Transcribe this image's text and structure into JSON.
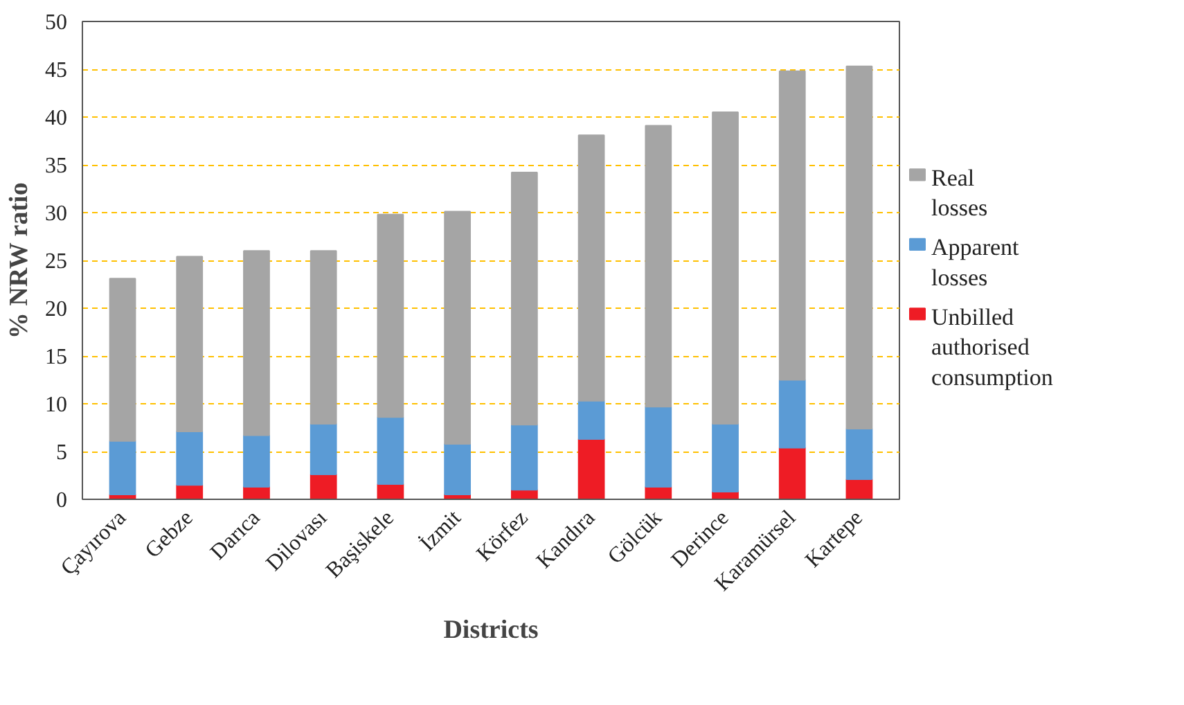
{
  "chart_data": {
    "type": "bar",
    "stacked": true,
    "xlabel": "Districts",
    "ylabel": "% NRW ratio",
    "categories": [
      "Çayırova",
      "Gebze",
      "Darıca",
      "Dilovası",
      "Başiskele",
      "İzmit",
      "Körfez",
      "Kandıra",
      "Gölcük",
      "Derince",
      "Karamürsel",
      "Kartepe"
    ],
    "series": [
      {
        "name": "Unbilled authorised consumption",
        "color": "#ee1c25",
        "values": [
          0.5,
          1.5,
          1.3,
          2.6,
          1.6,
          0.5,
          1.0,
          6.3,
          1.3,
          0.8,
          5.4,
          2.1
        ]
      },
      {
        "name": "Apparent losses",
        "color": "#5b9bd5",
        "values": [
          5.6,
          5.6,
          5.4,
          5.3,
          7.0,
          5.3,
          6.8,
          4.0,
          8.4,
          7.1,
          7.1,
          5.3
        ]
      },
      {
        "name": "Real losses",
        "color": "#a5a5a5",
        "values": [
          17.0,
          18.3,
          19.3,
          18.1,
          21.2,
          24.3,
          26.4,
          27.8,
          29.4,
          32.6,
          32.3,
          37.9
        ]
      }
    ],
    "ylim": [
      0,
      50
    ],
    "yticks": [
      0,
      5,
      10,
      15,
      20,
      25,
      30,
      35,
      40,
      45,
      50
    ],
    "grid": "y",
    "legend": "right"
  }
}
